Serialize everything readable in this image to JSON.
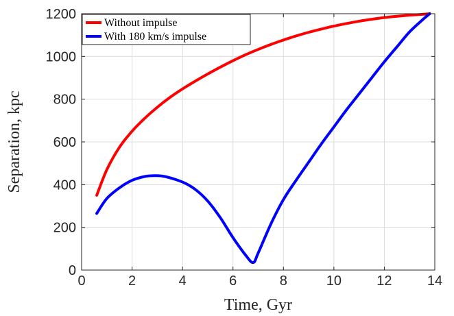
{
  "chart_data": {
    "type": "line",
    "xlabel": "Time, Gyr",
    "ylabel": "Separation, kpc",
    "xlim": [
      0,
      14
    ],
    "ylim": [
      0,
      1200
    ],
    "xticks": [
      0,
      2,
      4,
      6,
      8,
      10,
      12,
      14
    ],
    "yticks": [
      0,
      200,
      400,
      600,
      800,
      1000,
      1200
    ],
    "grid": true,
    "legend_position": "top-left",
    "series": [
      {
        "name": "Without impulse",
        "color": "#ff0000",
        "x": [
          0.6,
          1.0,
          1.5,
          2.0,
          2.5,
          3.0,
          3.5,
          4.0,
          4.5,
          5.0,
          5.5,
          6.0,
          6.5,
          7.0,
          7.5,
          8.0,
          8.5,
          9.0,
          9.5,
          10.0,
          10.5,
          11.0,
          11.5,
          12.0,
          12.5,
          13.0,
          13.5,
          13.8
        ],
        "y": [
          350,
          470,
          575,
          650,
          710,
          762,
          808,
          848,
          884,
          918,
          950,
          980,
          1008,
          1033,
          1056,
          1077,
          1096,
          1113,
          1128,
          1142,
          1154,
          1165,
          1174,
          1182,
          1188,
          1193,
          1197,
          1200
        ]
      },
      {
        "name": "With 180 km/s impulse",
        "color": "#0000ff",
        "x": [
          0.6,
          1.0,
          1.5,
          2.0,
          2.5,
          2.9,
          3.3,
          4.0,
          4.5,
          5.0,
          5.5,
          6.0,
          6.5,
          6.8,
          7.0,
          7.5,
          8.0,
          8.5,
          9.0,
          9.5,
          10.0,
          10.5,
          11.0,
          11.5,
          12.0,
          12.5,
          13.0,
          13.5,
          13.8
        ],
        "y": [
          265,
          335,
          385,
          420,
          438,
          442,
          438,
          412,
          378,
          323,
          245,
          152,
          70,
          35,
          80,
          215,
          330,
          420,
          505,
          590,
          670,
          750,
          825,
          900,
          975,
          1045,
          1115,
          1170,
          1200
        ]
      }
    ]
  }
}
